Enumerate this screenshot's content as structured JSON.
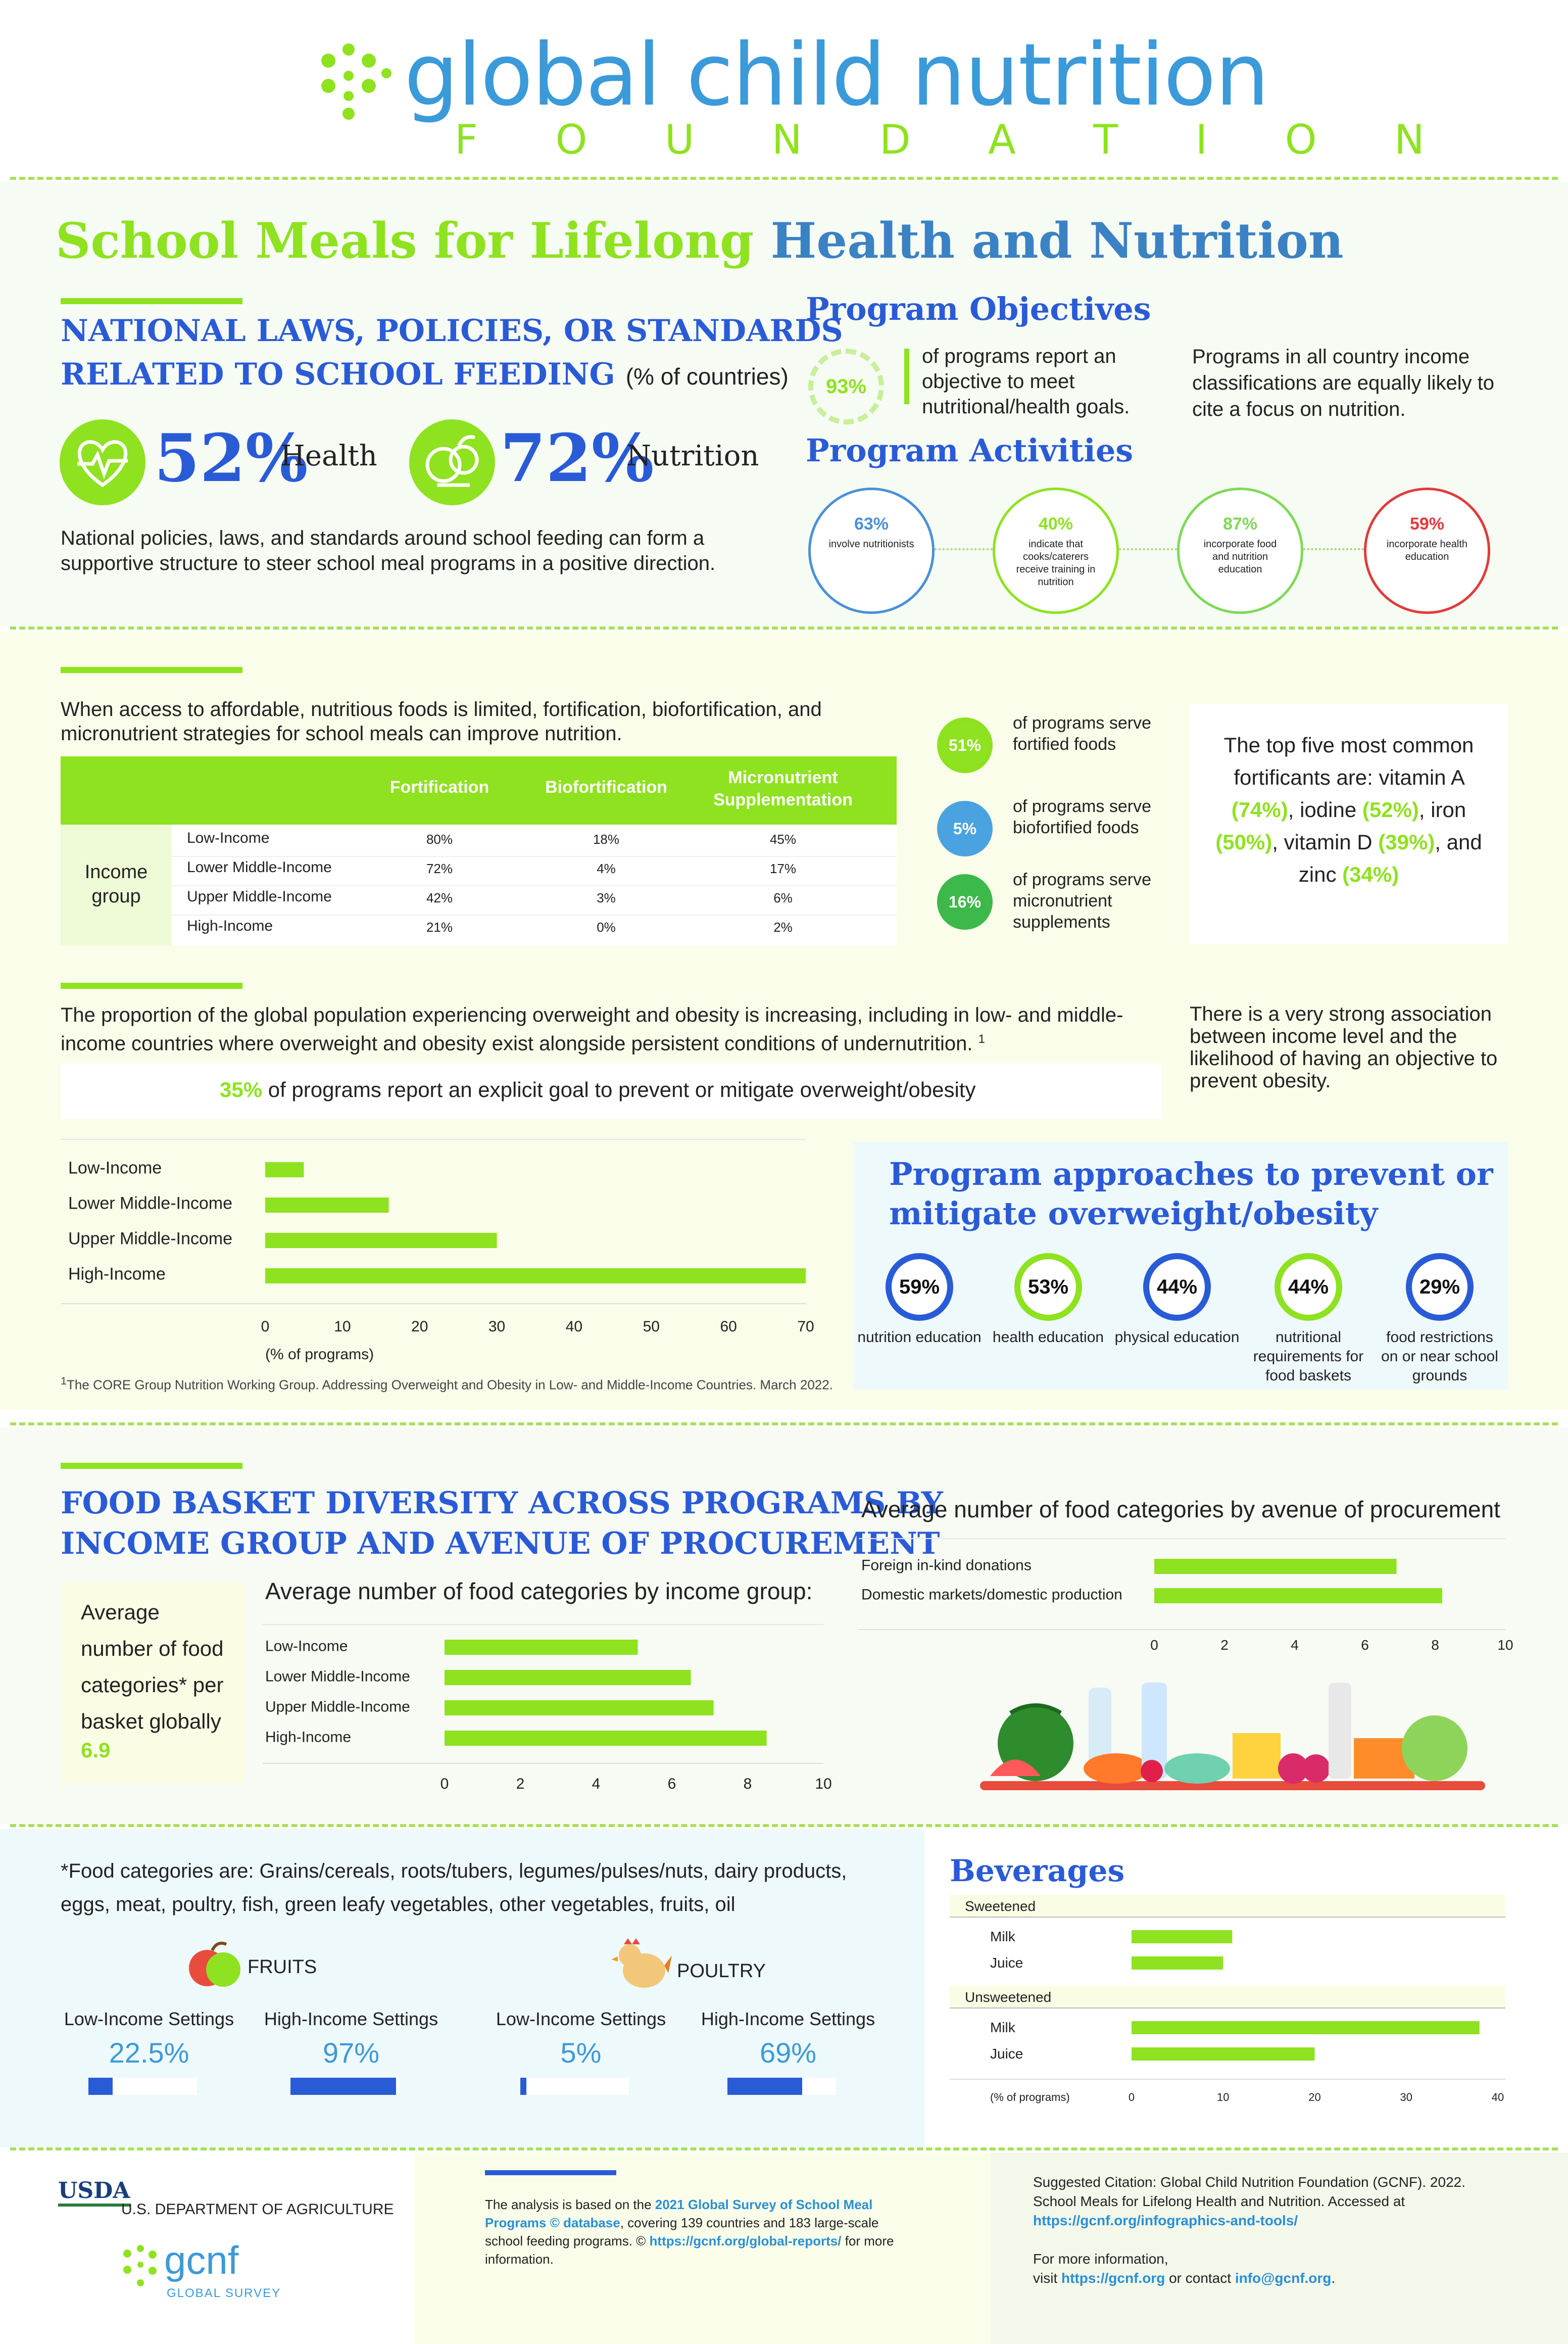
{
  "header": {
    "logo_text": "global child nutrition",
    "logo_sub": "F O U N D A T I O N"
  },
  "title": {
    "part1": "School Meals for Lifelong",
    "part2": "Health and Nutrition"
  },
  "laws": {
    "heading_line1": "NATIONAL LAWS, POLICIES, OR STANDARDS",
    "heading_line2": "RELATED TO SCHOOL FEEDING",
    "heading_unit": "(% of countries)",
    "health_value": "52%",
    "health_label": "Health",
    "nutrition_value": "72%",
    "nutrition_label": "Nutrition",
    "description": "National policies, laws, and standards around school feeding can form a supportive structure to steer school meal programs in a positive direction."
  },
  "objectives": {
    "heading": "Program Objectives",
    "value": "93%",
    "text": "of programs report an objective to meet nutritional/health goals.",
    "note": "Programs in all country income classifications are equally likely to cite a focus on nutrition."
  },
  "activities": {
    "heading": "Program Activities",
    "items": [
      {
        "value": "63%",
        "text": "involve nutritionists",
        "color": "#4a90d9"
      },
      {
        "value": "40%",
        "text": "indicate that cooks/caterers receive training in nutrition",
        "color": "#8ee21f"
      },
      {
        "value": "87%",
        "text": "incorporate food and nutrition education",
        "color": "#7ed957"
      },
      {
        "value": "59%",
        "text": "incorporate health education",
        "color": "#e03b3b"
      }
    ]
  },
  "fortification": {
    "intro": "When access to affordable, nutritious foods is limited, fortification, biofortification, and micronutrient strategies for school meals can improve nutrition.",
    "columns": [
      "Fortification",
      "Biofortification",
      "Micronutrient Supplementation"
    ],
    "group_label": "Income group",
    "rows": [
      {
        "name": "Low-Income",
        "values": [
          "80%",
          "18%",
          "45%"
        ]
      },
      {
        "name": "Lower Middle-Income",
        "values": [
          "72%",
          "4%",
          "17%"
        ]
      },
      {
        "name": "Upper Middle-Income",
        "values": [
          "42%",
          "3%",
          "6%"
        ]
      },
      {
        "name": "High-Income",
        "values": [
          "21%",
          "0%",
          "2%"
        ]
      }
    ],
    "stats": [
      {
        "value": "51%",
        "text": "of programs serve fortified foods",
        "color": "#8ee21f"
      },
      {
        "value": "5%",
        "text": "of programs serve biofortified foods",
        "color": "#4aa3e0"
      },
      {
        "value": "16%",
        "text": "of programs serve micronutrient supplements",
        "color": "#3cb94a"
      }
    ],
    "top_five_pre": "The top five most common fortificants are: vitamin A",
    "p1": "(74%)",
    "t1": ", iodine ",
    "p2": "(52%)",
    "t2": ", iron",
    "p3": "(50%)",
    "t3": ", vitamin D ",
    "p4": "(39%)",
    "t4": ", and zinc ",
    "p5": "(34%)"
  },
  "overweight": {
    "intro": "The proportion of the global population experiencing overweight and obesity is increasing,  including in low- and middle-income countries where overweight and obesity exist alongside persistent conditions of undernutrition.",
    "footnote_mark": "1",
    "goal_value": "35%",
    "goal_text": "of programs report an explicit goal to prevent or mitigate overweight/obesity",
    "association": "There is a very strong association between income level and the likelihood of having an objective to prevent obesity.",
    "footnote": "The CORE Group Nutrition Working Group. Addressing Overweight and Obesity in Low- and Middle-Income Countries.  March 2022.",
    "approaches_heading_line1": "Program approaches to prevent or",
    "approaches_heading_line2": "mitigate overweight/obesity",
    "approaches": [
      {
        "value": "59%",
        "label": "nutrition education",
        "color": "#2a5bd7"
      },
      {
        "value": "53%",
        "label": "health education",
        "color": "#8ee21f"
      },
      {
        "value": "44%",
        "label": "physical education",
        "color": "#2a5bd7"
      },
      {
        "value": "44%",
        "label": "nutritional requirements for food baskets",
        "color": "#8ee21f"
      },
      {
        "value": "29%",
        "label": "food restrictions on or near school grounds",
        "color": "#2a5bd7"
      }
    ]
  },
  "food_basket": {
    "heading_line1": "FOOD BASKET DIVERSITY ACROSS PROGRAMS BY",
    "heading_line2": "INCOME GROUP AND AVENUE OF PROCUREMENT",
    "avg_text": "Average number of food categories* per basket globally",
    "avg_value": "6.9",
    "categories_note": "*Food categories are: Grains/cereals, roots/tubers, legumes/pulses/nuts, dairy products, eggs, meat, poultry, fish, green leafy vegetables, other vegetables, fruits, oil",
    "fruits_label": "FRUITS",
    "poultry_label": "POULTRY",
    "settings": [
      {
        "label": "Low-Income Settings",
        "value": "22.5%",
        "fraction": 0.225
      },
      {
        "label": "High-Income Settings",
        "value": "97%",
        "fraction": 0.97
      },
      {
        "label": "Low-Income Settings",
        "value": "5%",
        "fraction": 0.05
      },
      {
        "label": "High-Income Settings",
        "value": "69%",
        "fraction": 0.69
      }
    ]
  },
  "beverages": {
    "heading": "Beverages"
  },
  "footer": {
    "usda": "U.S. DEPARTMENT OF AGRICULTURE",
    "usda_logo": "USDA",
    "gcnf_logo": "gcnf",
    "gcnf_sub": "GLOBAL SURVEY",
    "analysis_pre": "The analysis is based on the ",
    "analysis_link": "2021 Global Survey of School Meal Programs © database",
    "analysis_mid": ", covering 139 countries and 183 large-scale school feeding programs. © ",
    "analysis_url": "https://gcnf.org/global-reports/",
    "analysis_post": " for more information.",
    "citation": "Suggested Citation: Global Child Nutrition Foundation (GCNF). 2022. School Meals for Lifelong Health and Nutrition. Accessed at",
    "citation_url": "https://gcnf.org/infographics-and-tools/",
    "more_info": "For more information,",
    "visit": "visit ",
    "visit_url": "https://gcnf.org",
    "or_contact": " or contact ",
    "email": "info@gcnf.org",
    "period": "."
  },
  "chart_data": [
    {
      "type": "bar",
      "orientation": "horizontal",
      "categories": [
        "Low-Income",
        "Lower Middle-Income",
        "Upper Middle-Income",
        "High-Income"
      ],
      "values": [
        5,
        16,
        30,
        70
      ],
      "xlabel": "(% of programs)",
      "xlim": [
        0,
        70
      ],
      "ticks": [
        0,
        10,
        20,
        30,
        40,
        50,
        60,
        70
      ],
      "color": "#8ee21f"
    },
    {
      "type": "bar",
      "orientation": "horizontal",
      "title": "Average number of food categories by income group:",
      "categories": [
        "Low-Income",
        "Lower Middle-Income",
        "Upper Middle-Income",
        "High-Income"
      ],
      "values": [
        5.1,
        6.5,
        7.1,
        8.5
      ],
      "xlim": [
        0,
        10
      ],
      "ticks": [
        0,
        2,
        4,
        6,
        8,
        10
      ],
      "color": "#8ee21f"
    },
    {
      "type": "bar",
      "orientation": "horizontal",
      "title": "Average number of food categories by avenue of procurement",
      "categories": [
        "Foreign in-kind donations",
        "Domestic markets/domestic production"
      ],
      "values": [
        6.9,
        8.2
      ],
      "xlim": [
        0,
        10
      ],
      "ticks": [
        0,
        2,
        4,
        6,
        8,
        10
      ],
      "color": "#8ee21f"
    },
    {
      "type": "bar",
      "orientation": "horizontal",
      "groups": [
        {
          "name": "Sweetened",
          "categories": [
            "Milk",
            "Juice"
          ],
          "values": [
            11,
            10
          ]
        },
        {
          "name": "Unsweetened",
          "categories": [
            "Milk",
            "Juice"
          ],
          "values": [
            38,
            20
          ]
        }
      ],
      "xlabel": "(% of programs)",
      "xlim": [
        0,
        40
      ],
      "ticks": [
        0,
        10,
        20,
        30,
        40
      ],
      "color": "#8ee21f"
    }
  ]
}
